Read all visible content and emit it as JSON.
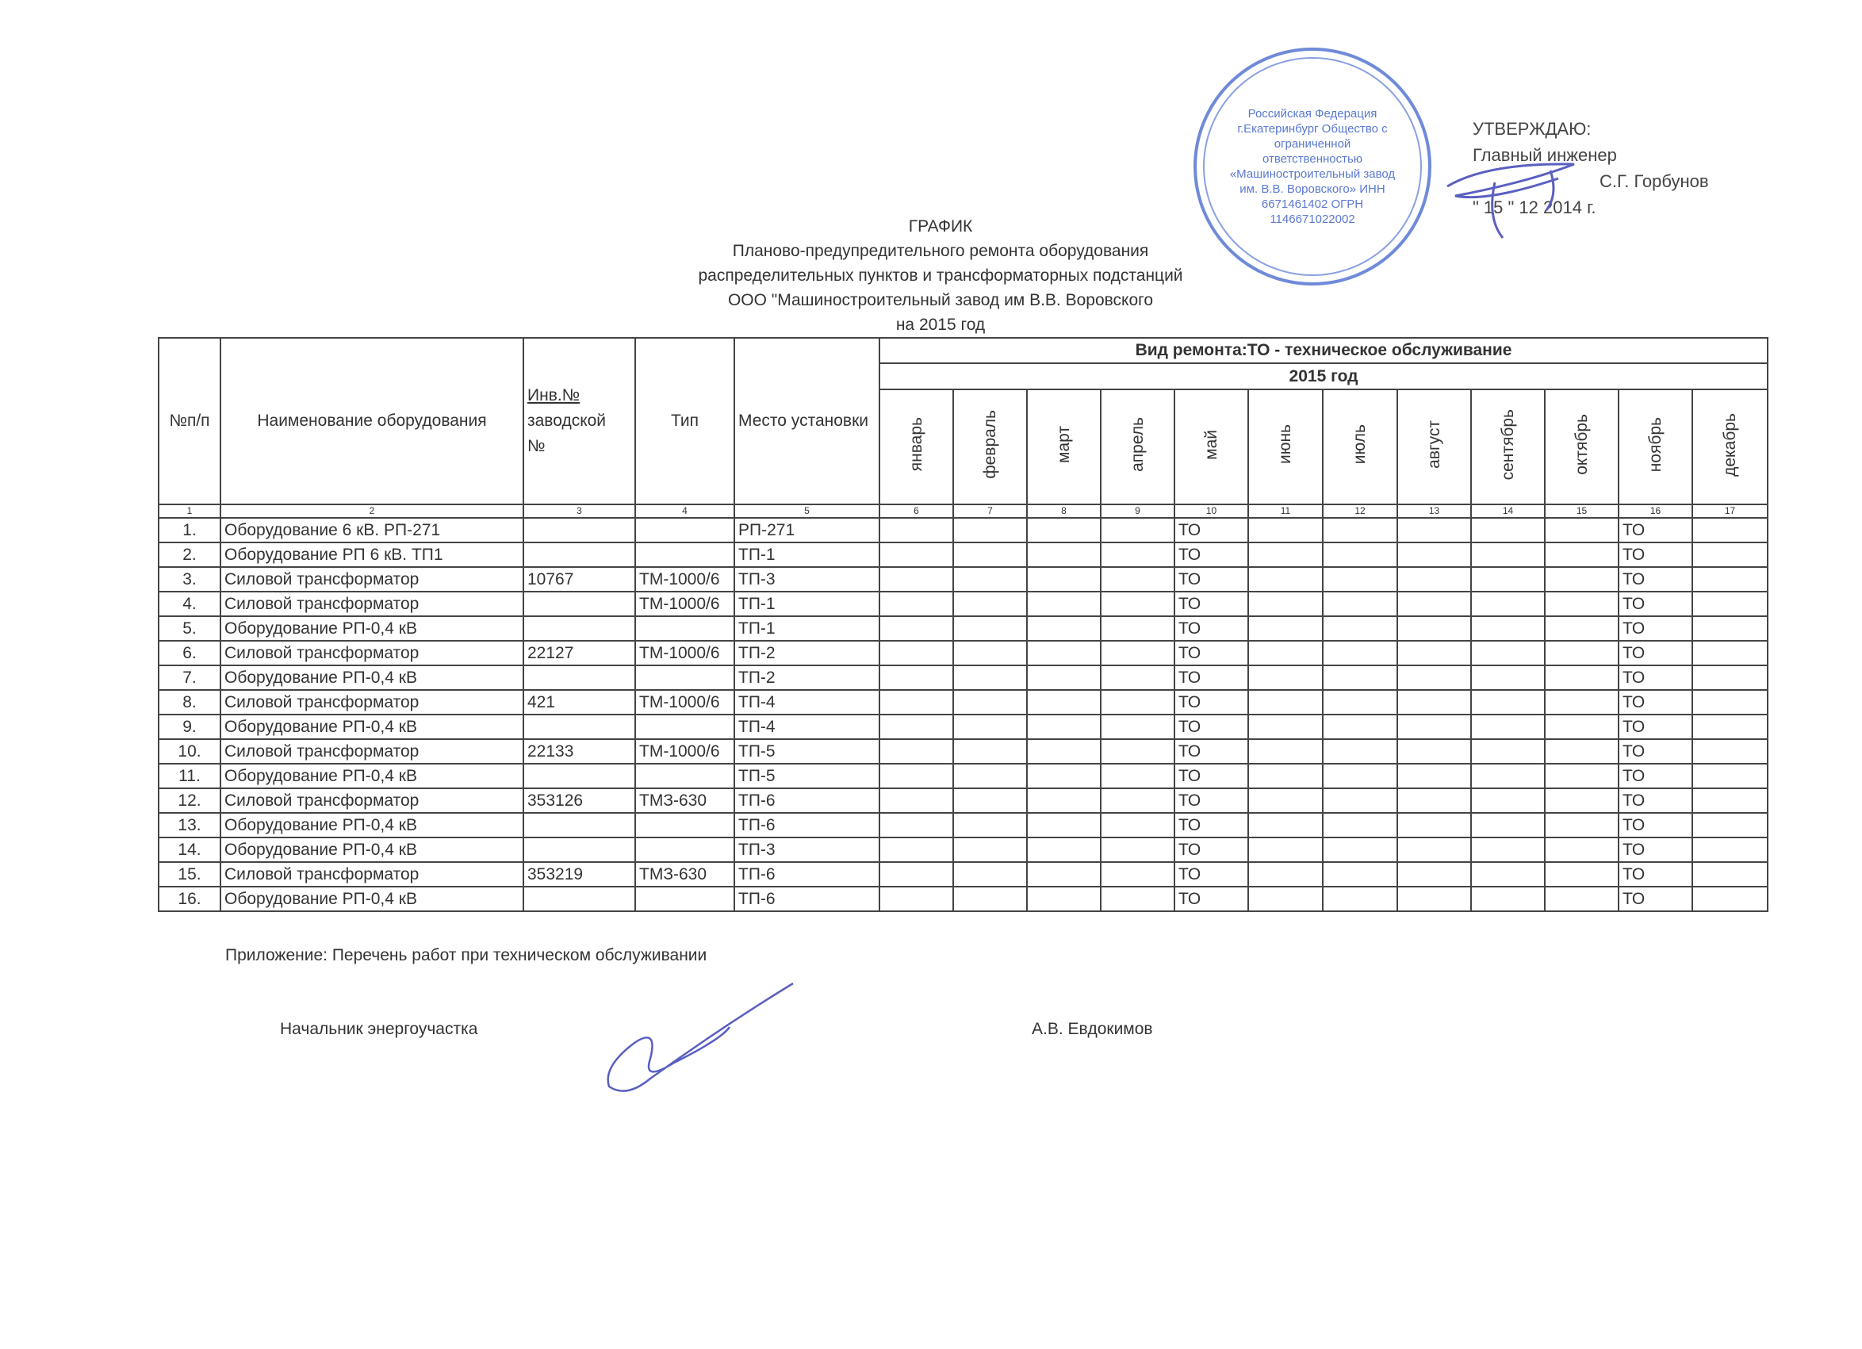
{
  "approval": {
    "line1": "УТВЕРЖДАЮ:",
    "line2": "Главный инженер",
    "line3": "С.Г. Горбунов",
    "line4": "\" 15 \" 12 2014 г.",
    "stamp_text": "Российская Федерация г.Екатеринбург Общество с ограниченной ответственностью «Машиностроительный завод им. В.В. Воровского» ИНН 6671461402 ОГРН 1146671022002",
    "stamp_color": "#5a78d0"
  },
  "title": {
    "line1": "ГРАФИК",
    "line2": "Планово-предупредительного ремонта оборудования",
    "line3": "распределительных пунктов и трансформаторных подстанций",
    "line4": "ООО \"Машиностроительный завод им В.В. Воровского",
    "line5": "на 2015 год"
  },
  "table": {
    "headers": {
      "num": "№п/п",
      "name": "Наименование оборудования",
      "inv": "Инв.№",
      "inv2": "заводской",
      "inv3": "№",
      "type": "Тип",
      "place": "Место установки",
      "repair_kind": "Вид ремонта:ТО - техническое обслуживание",
      "year": "2015 год"
    },
    "months": [
      "январь",
      "февраль",
      "март",
      "апрель",
      "май",
      "июнь",
      "июль",
      "август",
      "сентябрь",
      "октябрь",
      "ноябрь",
      "декабрь"
    ],
    "column_numbers": [
      "1",
      "2",
      "3",
      "4",
      "5",
      "6",
      "7",
      "8",
      "9",
      "10",
      "11",
      "12",
      "13",
      "14",
      "15",
      "16",
      "17"
    ],
    "rows": [
      {
        "n": "1.",
        "name": "Оборудование 6 кВ. РП-271",
        "inv": "",
        "type": "",
        "place": "РП-271",
        "plan": [
          "",
          "",
          "",
          "",
          "ТО",
          "",
          "",
          "",
          "",
          "",
          "ТО",
          ""
        ]
      },
      {
        "n": "2.",
        "name": "Оборудование РП 6 кВ. ТП1",
        "inv": "",
        "type": "",
        "place": "ТП-1",
        "plan": [
          "",
          "",
          "",
          "",
          "ТО",
          "",
          "",
          "",
          "",
          "",
          "ТО",
          ""
        ]
      },
      {
        "n": "3.",
        "name": "Силовой трансформатор",
        "inv": "10767",
        "type": "ТМ-1000/6",
        "place": "ТП-3",
        "plan": [
          "",
          "",
          "",
          "",
          "ТО",
          "",
          "",
          "",
          "",
          "",
          "ТО",
          ""
        ]
      },
      {
        "n": "4.",
        "name": "Силовой трансформатор",
        "inv": "",
        "type": "ТМ-1000/6",
        "place": "ТП-1",
        "plan": [
          "",
          "",
          "",
          "",
          "ТО",
          "",
          "",
          "",
          "",
          "",
          "ТО",
          ""
        ]
      },
      {
        "n": "5.",
        "name": "Оборудование РП-0,4 кВ",
        "inv": "",
        "type": "",
        "place": "ТП-1",
        "plan": [
          "",
          "",
          "",
          "",
          "ТО",
          "",
          "",
          "",
          "",
          "",
          "ТО",
          ""
        ]
      },
      {
        "n": "6.",
        "name": "Силовой трансформатор",
        "inv": "22127",
        "type": "ТМ-1000/6",
        "place": "ТП-2",
        "plan": [
          "",
          "",
          "",
          "",
          "ТО",
          "",
          "",
          "",
          "",
          "",
          "ТО",
          ""
        ]
      },
      {
        "n": "7.",
        "name": "Оборудование РП-0,4 кВ",
        "inv": "",
        "type": "",
        "place": "ТП-2",
        "plan": [
          "",
          "",
          "",
          "",
          "ТО",
          "",
          "",
          "",
          "",
          "",
          "ТО",
          ""
        ]
      },
      {
        "n": "8.",
        "name": "Силовой трансформатор",
        "inv": "421",
        "type": "ТМ-1000/6",
        "place": "ТП-4",
        "plan": [
          "",
          "",
          "",
          "",
          "ТО",
          "",
          "",
          "",
          "",
          "",
          "ТО",
          ""
        ]
      },
      {
        "n": "9.",
        "name": "Оборудование РП-0,4 кВ",
        "inv": "",
        "type": "",
        "place": "ТП-4",
        "plan": [
          "",
          "",
          "",
          "",
          "ТО",
          "",
          "",
          "",
          "",
          "",
          "ТО",
          ""
        ]
      },
      {
        "n": "10.",
        "name": "Силовой трансформатор",
        "inv": "22133",
        "type": "ТМ-1000/6",
        "place": "ТП-5",
        "plan": [
          "",
          "",
          "",
          "",
          "ТО",
          "",
          "",
          "",
          "",
          "",
          "ТО",
          ""
        ]
      },
      {
        "n": "11.",
        "name": "Оборудование РП-0,4 кВ",
        "inv": "",
        "type": "",
        "place": "ТП-5",
        "plan": [
          "",
          "",
          "",
          "",
          "ТО",
          "",
          "",
          "",
          "",
          "",
          "ТО",
          ""
        ]
      },
      {
        "n": "12.",
        "name": "Силовой трансформатор",
        "inv": "353126",
        "type": "ТМЗ-630",
        "place": "ТП-6",
        "plan": [
          "",
          "",
          "",
          "",
          "ТО",
          "",
          "",
          "",
          "",
          "",
          "ТО",
          ""
        ]
      },
      {
        "n": "13.",
        "name": "Оборудование РП-0,4 кВ",
        "inv": "",
        "type": "",
        "place": "ТП-6",
        "plan": [
          "",
          "",
          "",
          "",
          "ТО",
          "",
          "",
          "",
          "",
          "",
          "ТО",
          ""
        ]
      },
      {
        "n": "14.",
        "name": "Оборудование РП-0,4 кВ",
        "inv": "",
        "type": "",
        "place": "ТП-3",
        "plan": [
          "",
          "",
          "",
          "",
          "ТО",
          "",
          "",
          "",
          "",
          "",
          "ТО",
          ""
        ]
      },
      {
        "n": "15.",
        "name": "Силовой трансформатор",
        "inv": "353219",
        "type": "ТМЗ-630",
        "place": "ТП-6",
        "plan": [
          "",
          "",
          "",
          "",
          "ТО",
          "",
          "",
          "",
          "",
          "",
          "ТО",
          ""
        ]
      },
      {
        "n": "16.",
        "name": "Оборудование РП-0,4 кВ",
        "inv": "",
        "type": "",
        "place": "ТП-6",
        "plan": [
          "",
          "",
          "",
          "",
          "ТО",
          "",
          "",
          "",
          "",
          "",
          "ТО",
          ""
        ]
      }
    ]
  },
  "footer": {
    "appendix": "Приложение: Перечень работ при техническом обслуживании",
    "position": "Начальник энергоучастка",
    "signer": "А.В. Евдокимов",
    "signature_color": "#5a5fc0"
  }
}
